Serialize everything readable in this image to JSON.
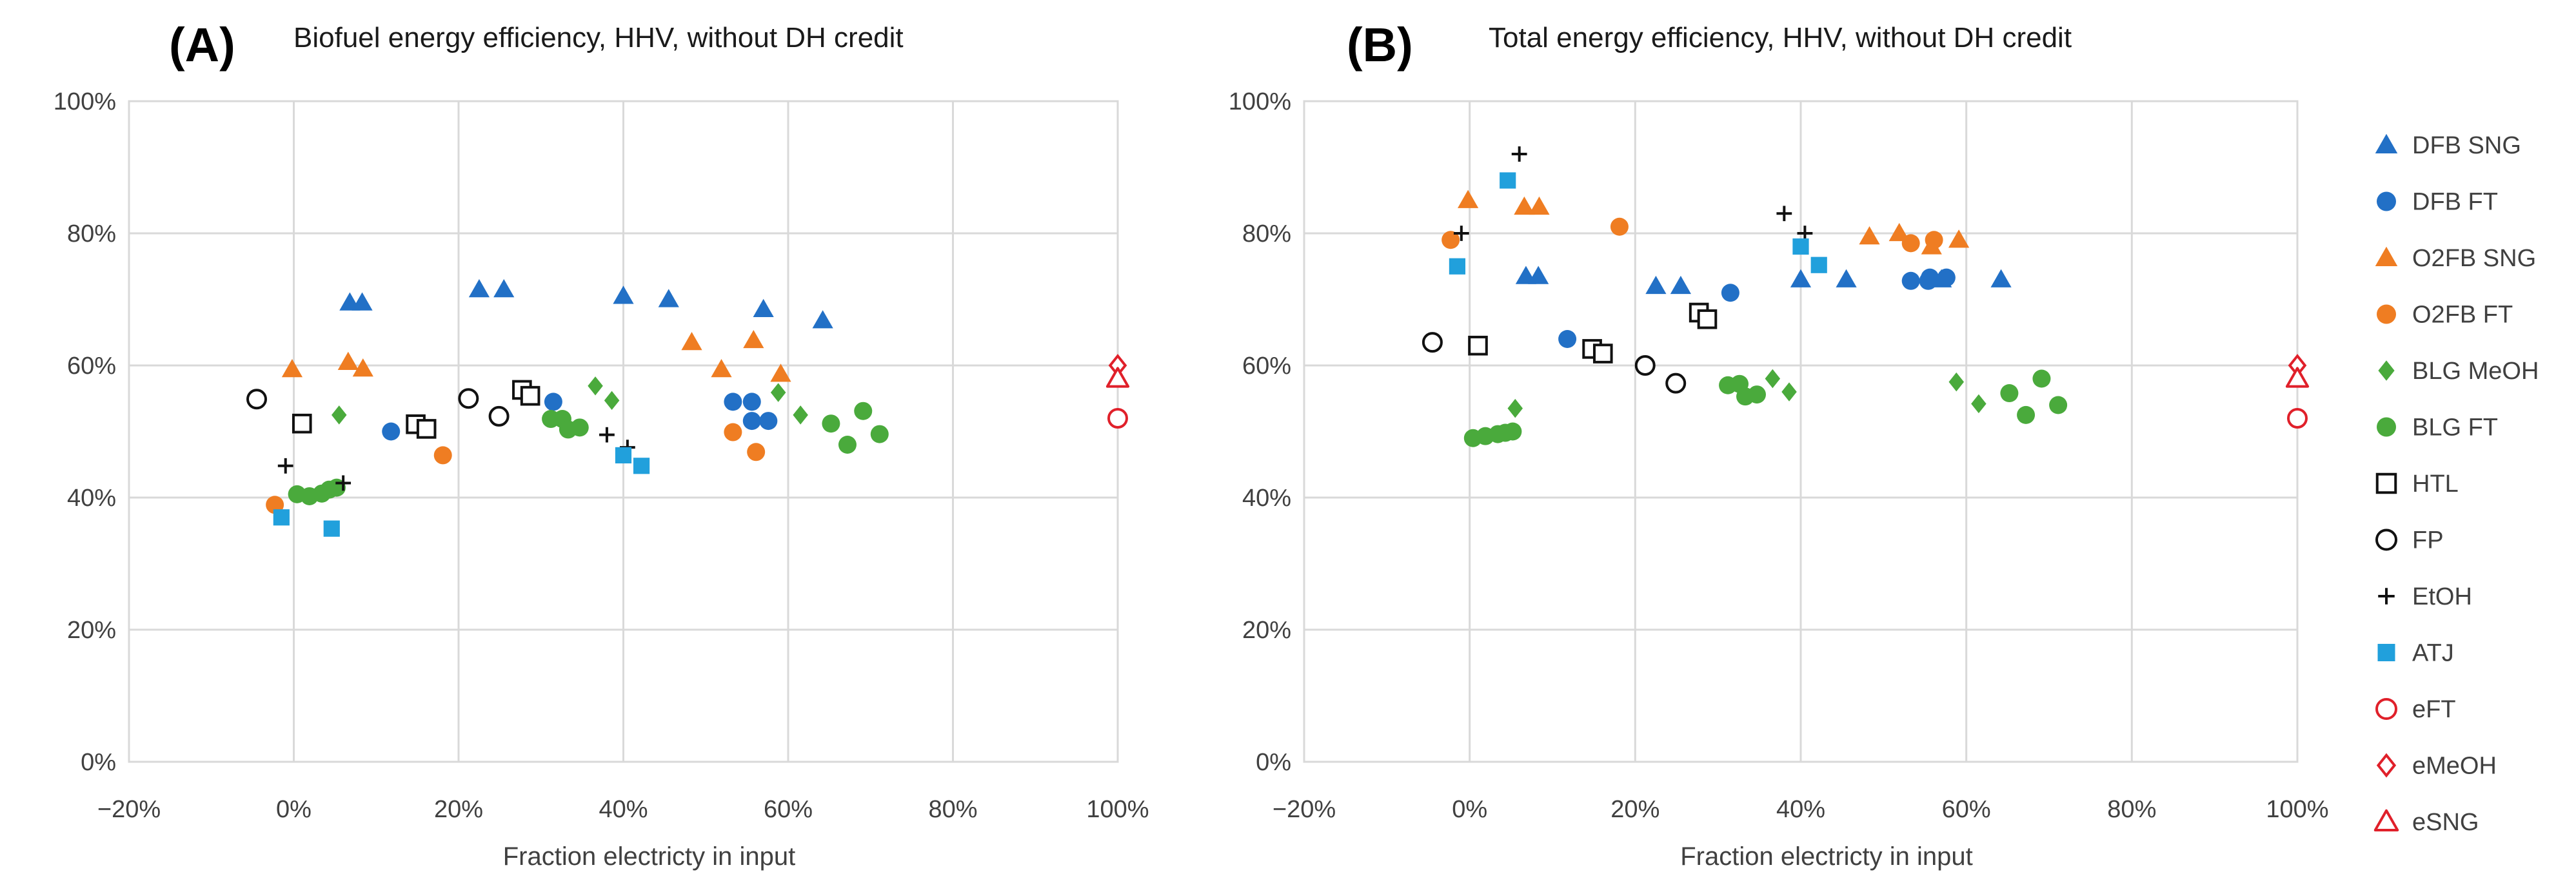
{
  "chart_data": {
    "type": "scatter",
    "colors": {
      "dfb": "#2270c6",
      "o2fb": "#ef7d22",
      "blg": "#4aaa3c",
      "atj": "#21a0dc",
      "black": "#111111",
      "red": "#e0202a"
    },
    "legend_position": "right",
    "legend": [
      {
        "name": "DFB SNG",
        "key": "dfb_sng"
      },
      {
        "name": "DFB FT",
        "key": "dfb_ft"
      },
      {
        "name": "O2FB SNG",
        "key": "o2fb_sng"
      },
      {
        "name": "O2FB FT",
        "key": "o2fb_ft"
      },
      {
        "name": "BLG MeOH",
        "key": "blg_meoh"
      },
      {
        "name": "BLG FT",
        "key": "blg_ft"
      },
      {
        "name": "HTL",
        "key": "htl"
      },
      {
        "name": "FP",
        "key": "fp"
      },
      {
        "name": "EtOH",
        "key": "etoh"
      },
      {
        "name": "ATJ",
        "key": "atj"
      },
      {
        "name": "eFT",
        "key": "eft"
      },
      {
        "name": "eMeOH",
        "key": "emeoh"
      },
      {
        "name": "eSNG",
        "key": "esng"
      }
    ],
    "series_styles": {
      "dfb_sng": {
        "marker": "triangle",
        "color": "dfb"
      },
      "dfb_ft": {
        "marker": "circle",
        "color": "dfb"
      },
      "o2fb_sng": {
        "marker": "triangle",
        "color": "o2fb"
      },
      "o2fb_ft": {
        "marker": "circle",
        "color": "o2fb"
      },
      "blg_meoh": {
        "marker": "diamond",
        "color": "blg"
      },
      "blg_ft": {
        "marker": "circle",
        "color": "blg"
      },
      "htl": {
        "marker": "square-open",
        "color": "black"
      },
      "fp": {
        "marker": "circle-open",
        "color": "black"
      },
      "etoh": {
        "marker": "plus",
        "color": "black"
      },
      "atj": {
        "marker": "square",
        "color": "atj"
      },
      "eft": {
        "marker": "circle-open",
        "color": "red"
      },
      "emeoh": {
        "marker": "diamond-open",
        "color": "red"
      },
      "esng": {
        "marker": "triangle-open",
        "color": "red"
      }
    },
    "panels": [
      {
        "label": "(A)",
        "title": "Biofuel energy efficiency, HHV, without DH credit",
        "xlabel": "Fraction electricty in input",
        "ylabel": "",
        "xlim": [
          -20,
          100
        ],
        "ylim": [
          0,
          100
        ],
        "x_ticks": [
          "−20%",
          "0%",
          "20%",
          "40%",
          "60%",
          "80%",
          "100%"
        ],
        "y_ticks": [
          "0%",
          "20%",
          "40%",
          "60%",
          "80%",
          "100%"
        ],
        "grid": true,
        "series": {
          "dfb_sng": [
            [
              6.8,
              69.5
            ],
            [
              8.3,
              69.5
            ],
            [
              22.5,
              71.5
            ],
            [
              25.5,
              71.5
            ],
            [
              40,
              70.5
            ],
            [
              45.5,
              70
            ],
            [
              57,
              68.5
            ],
            [
              64.2,
              66.8
            ]
          ],
          "dfb_ft": [
            [
              11.8,
              50
            ],
            [
              31.5,
              54.5
            ],
            [
              53.3,
              54.5
            ],
            [
              55.6,
              54.5
            ],
            [
              55.6,
              51.6
            ],
            [
              57.6,
              51.6
            ]
          ],
          "o2fb_sng": [
            [
              -0.2,
              59.4
            ],
            [
              6.6,
              60.5
            ],
            [
              8.4,
              59.5
            ],
            [
              48.3,
              63.5
            ],
            [
              51.9,
              59.4
            ],
            [
              55.8,
              63.8
            ],
            [
              59.1,
              58.7
            ]
          ],
          "o2fb_ft": [
            [
              -2.3,
              38.9
            ],
            [
              18.1,
              46.4
            ],
            [
              53.3,
              49.9
            ],
            [
              56.1,
              46.9
            ]
          ],
          "blg_meoh": [
            [
              5.5,
              52.5
            ],
            [
              36.6,
              56.9
            ],
            [
              38.6,
              54.7
            ],
            [
              58.8,
              55.9
            ],
            [
              61.5,
              52.5
            ]
          ],
          "blg_ft": [
            [
              0.4,
              40.5
            ],
            [
              1.9,
              40.2
            ],
            [
              3.4,
              40.6
            ],
            [
              4.3,
              41.2
            ],
            [
              5.2,
              41.5
            ],
            [
              31.2,
              51.9
            ],
            [
              32.6,
              51.9
            ],
            [
              33.3,
              50.3
            ],
            [
              34.7,
              50.6
            ],
            [
              65.2,
              51.2
            ],
            [
              67.2,
              48
            ],
            [
              69.1,
              53.1
            ],
            [
              71.1,
              49.6
            ]
          ],
          "htl": [
            [
              1,
              51.2
            ],
            [
              14.8,
              51.1
            ],
            [
              16.1,
              50.4
            ],
            [
              27.7,
              56.3
            ],
            [
              28.7,
              55.4
            ]
          ],
          "fp": [
            [
              -4.5,
              54.9
            ],
            [
              21.2,
              55
            ],
            [
              24.9,
              52.3
            ]
          ],
          "etoh": [
            [
              -1,
              44.8
            ],
            [
              6,
              42.2
            ],
            [
              38,
              49.5
            ],
            [
              40.5,
              47.6
            ]
          ],
          "atj": [
            [
              -1.5,
              37
            ],
            [
              4.6,
              35.3
            ],
            [
              40,
              46.4
            ],
            [
              42.2,
              44.8
            ]
          ],
          "eft": [
            [
              100,
              52
            ]
          ],
          "emeoh": [
            [
              100,
              60
            ]
          ],
          "esng": [
            [
              100,
              58
            ]
          ]
        }
      },
      {
        "label": "(B)",
        "title": "Total energy efficiency, HHV, without DH credit",
        "xlabel": "Fraction electricty in input",
        "ylabel": "",
        "xlim": [
          -20,
          100
        ],
        "ylim": [
          0,
          100
        ],
        "x_ticks": [
          "−20%",
          "0%",
          "20%",
          "40%",
          "60%",
          "80%",
          "100%"
        ],
        "y_ticks": [
          "0%",
          "20%",
          "40%",
          "60%",
          "80%",
          "100%"
        ],
        "grid": true,
        "series": {
          "dfb_sng": [
            [
              6.8,
              73.5
            ],
            [
              8.3,
              73.5
            ],
            [
              22.5,
              72
            ],
            [
              25.5,
              72
            ],
            [
              40,
              73
            ],
            [
              45.5,
              73
            ],
            [
              57,
              73
            ],
            [
              64.2,
              73
            ]
          ],
          "dfb_ft": [
            [
              11.8,
              64
            ],
            [
              31.5,
              71
            ],
            [
              53.3,
              72.8
            ],
            [
              55.4,
              72.8
            ],
            [
              55.6,
              73.3
            ],
            [
              57.6,
              73.3
            ]
          ],
          "o2fb_sng": [
            [
              -0.2,
              85
            ],
            [
              6.6,
              84
            ],
            [
              8.4,
              84
            ],
            [
              48.3,
              79.5
            ],
            [
              51.9,
              80
            ],
            [
              55.8,
              78
            ],
            [
              59.1,
              79
            ]
          ],
          "o2fb_ft": [
            [
              -2.3,
              79
            ],
            [
              18.1,
              81
            ],
            [
              53.3,
              78.5
            ],
            [
              56.1,
              79
            ]
          ],
          "blg_meoh": [
            [
              5.5,
              53.5
            ],
            [
              36.6,
              58
            ],
            [
              38.6,
              56
            ],
            [
              58.8,
              57.5
            ],
            [
              61.5,
              54.2
            ]
          ],
          "blg_ft": [
            [
              0.4,
              49
            ],
            [
              1.9,
              49.3
            ],
            [
              3.4,
              49.6
            ],
            [
              4.3,
              49.8
            ],
            [
              5.2,
              50
            ],
            [
              31.2,
              57
            ],
            [
              32.6,
              57.2
            ],
            [
              33.3,
              55.3
            ],
            [
              34.7,
              55.6
            ],
            [
              65.2,
              55.8
            ],
            [
              67.2,
              52.5
            ],
            [
              69.1,
              58
            ],
            [
              71.1,
              54
            ]
          ],
          "htl": [
            [
              1,
              63
            ],
            [
              14.8,
              62.5
            ],
            [
              16.1,
              61.8
            ],
            [
              27.7,
              68
            ],
            [
              28.7,
              67
            ]
          ],
          "fp": [
            [
              -4.5,
              63.5
            ],
            [
              21.2,
              60
            ],
            [
              24.9,
              57.3
            ]
          ],
          "etoh": [
            [
              -1,
              80
            ],
            [
              6,
              92
            ],
            [
              38,
              83
            ],
            [
              40.5,
              80
            ]
          ],
          "atj": [
            [
              -1.5,
              75
            ],
            [
              4.6,
              88
            ],
            [
              40,
              78
            ],
            [
              42.2,
              75.2
            ]
          ],
          "eft": [
            [
              100,
              52
            ]
          ],
          "emeoh": [
            [
              100,
              60
            ]
          ],
          "esng": [
            [
              100,
              58
            ]
          ]
        }
      }
    ]
  }
}
